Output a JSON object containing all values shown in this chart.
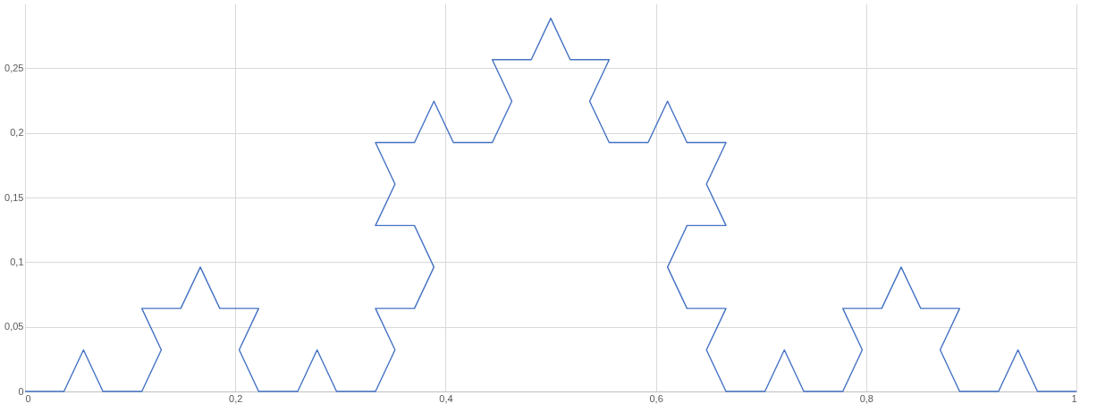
{
  "chart_data": {
    "type": "line",
    "color": "#4472c4",
    "grid": true,
    "marker": "none",
    "line_style": "solid",
    "xlim": [
      0,
      1
    ],
    "ylim": [
      0,
      0.3
    ],
    "xticks": [
      0,
      {
        "value": 0.2,
        "label": "0,2"
      },
      {
        "value": 0.4,
        "label": "0,4"
      },
      {
        "value": 0.6,
        "label": "0,6"
      },
      {
        "value": 0.8,
        "label": "0,8"
      },
      1
    ],
    "yticks": [
      0,
      {
        "value": 0.05,
        "label": "0,05"
      },
      {
        "value": 0.1,
        "label": "0,1"
      },
      {
        "value": 0.15,
        "label": "0,15"
      },
      {
        "value": 0.2,
        "label": "0,2"
      },
      {
        "value": 0.25,
        "label": "0,25"
      }
    ],
    "x": [
      0,
      0.037,
      0.0556,
      0.0741,
      0.1111,
      0.1296,
      0.1111,
      0.1481,
      0.1667,
      0.1852,
      0.2222,
      0.2037,
      0.2222,
      0.2593,
      0.2778,
      0.2963,
      0.3333,
      0.3519,
      0.3333,
      0.3704,
      0.3889,
      0.3704,
      0.3333,
      0.3519,
      0.3333,
      0.3704,
      0.3889,
      0.4074,
      0.4444,
      0.463,
      0.4444,
      0.4815,
      0.5,
      0.5185,
      0.5556,
      0.537,
      0.5556,
      0.5926,
      0.6111,
      0.6296,
      0.6667,
      0.6481,
      0.6667,
      0.6296,
      0.6111,
      0.6296,
      0.6667,
      0.6481,
      0.6667,
      0.7037,
      0.7222,
      0.7407,
      0.7778,
      0.7963,
      0.7778,
      0.8148,
      0.8333,
      0.8519,
      0.8889,
      0.8704,
      0.8889,
      0.9259,
      0.9444,
      0.963,
      1
    ],
    "values": [
      0,
      0,
      0.0321,
      0,
      0,
      0.0321,
      0.0642,
      0.0642,
      0.0962,
      0.0642,
      0.0642,
      0.0321,
      0,
      0,
      0.0321,
      0,
      0,
      0.0321,
      0.0642,
      0.0642,
      0.0962,
      0.1283,
      0.1283,
      0.1604,
      0.1925,
      0.1925,
      0.2245,
      0.1925,
      0.1925,
      0.2245,
      0.2566,
      0.2566,
      0.2887,
      0.2566,
      0.2566,
      0.2245,
      0.1925,
      0.1925,
      0.2245,
      0.1925,
      0.1925,
      0.1604,
      0.1283,
      0.1283,
      0.0962,
      0.0642,
      0.0642,
      0.0321,
      0,
      0,
      0.0321,
      0,
      0,
      0.0321,
      0.0642,
      0.0642,
      0.0962,
      0.0642,
      0.0642,
      0.0321,
      0,
      0,
      0.0321,
      0,
      0
    ]
  }
}
